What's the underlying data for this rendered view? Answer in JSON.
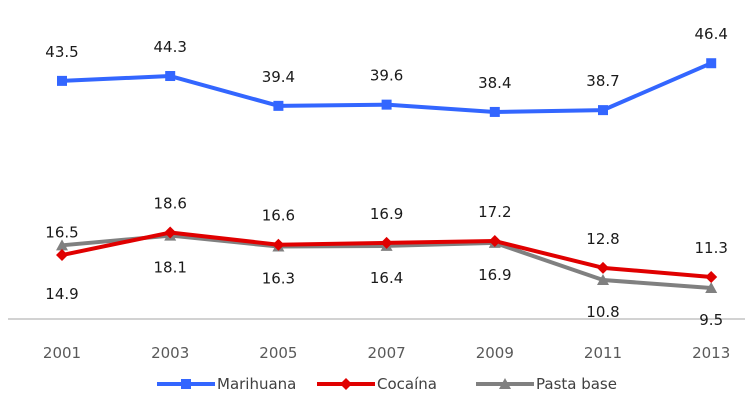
{
  "chart_data": {
    "type": "line",
    "title": "",
    "xlabel": "",
    "ylabel": "",
    "ylim": [
      0,
      50
    ],
    "grid": false,
    "legend_position": "bottom",
    "categories": [
      "2001",
      "2003",
      "2005",
      "2007",
      "2009",
      "2011",
      "2013"
    ],
    "series": [
      {
        "name": "Marihuana",
        "color": "#3366FF",
        "marker": "square",
        "values": [
          43.5,
          44.3,
          39.4,
          39.6,
          38.4,
          38.7,
          46.4
        ],
        "labels": [
          "43.5",
          "44.3",
          "39.4",
          "39.6",
          "38.4",
          "38.7",
          "46.4"
        ]
      },
      {
        "name": "Cocaína",
        "color": "#E00000",
        "marker": "diamond",
        "values": [
          14.9,
          18.6,
          16.6,
          16.9,
          17.2,
          12.8,
          11.3
        ],
        "labels": [
          "14.9",
          "18.6",
          "16.6",
          "16.9",
          "17.2",
          "12.8",
          "11.3"
        ]
      },
      {
        "name": "Pasta base",
        "color": "#808080",
        "marker": "triangle",
        "values": [
          16.5,
          18.1,
          16.3,
          16.4,
          16.9,
          10.8,
          9.5
        ],
        "labels": [
          "16.5",
          "18.1",
          "16.3",
          "16.4",
          "16.9",
          "10.8",
          "9.5"
        ]
      }
    ]
  }
}
